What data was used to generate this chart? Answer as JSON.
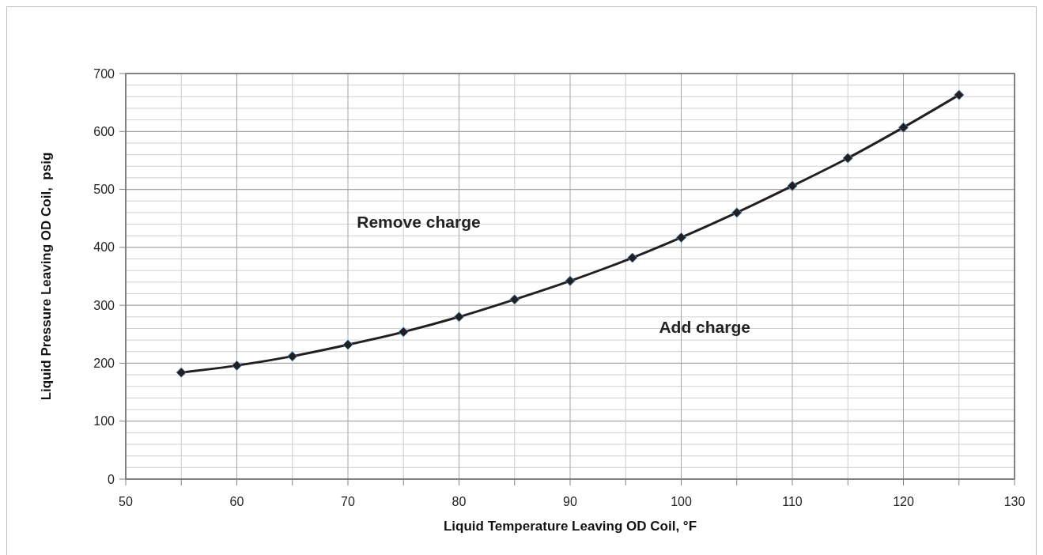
{
  "chart_data": {
    "type": "line",
    "xlabel": "Liquid Temperature Leaving OD Coil, °F",
    "ylabel": "Liquid Pressure Leaving OD Coil,  psig",
    "x": [
      55,
      60,
      65,
      70,
      75,
      80,
      85,
      90,
      95.6,
      100,
      105,
      110,
      115,
      120,
      125
    ],
    "series": [
      {
        "color": "#231f20",
        "values": [
          184,
          196,
          212,
          232,
          254,
          280,
          310,
          342,
          382,
          417,
          460,
          506,
          554,
          607,
          663
        ]
      }
    ],
    "xlim": [
      50,
      130
    ],
    "xticks": [
      50,
      {
        "value": 55,
        "label": null
      },
      60,
      {
        "value": 65,
        "label": null
      },
      70,
      {
        "value": 75,
        "label": null
      },
      80,
      {
        "value": 85,
        "label": null
      },
      90,
      {
        "value": 95,
        "label": null
      },
      100,
      {
        "value": 105,
        "label": null
      },
      110,
      {
        "value": 115,
        "label": null
      },
      120,
      {
        "value": 125,
        "label": null
      },
      130
    ],
    "ylim": [
      0,
      700
    ],
    "yticks": [
      0,
      {
        "value": 20,
        "label": null
      },
      {
        "value": 40,
        "label": null
      },
      {
        "value": 60,
        "label": null
      },
      {
        "value": 80,
        "label": null
      },
      100,
      {
        "value": 120,
        "label": null
      },
      {
        "value": 140,
        "label": null
      },
      {
        "value": 160,
        "label": null
      },
      {
        "value": 180,
        "label": null
      },
      200,
      {
        "value": 220,
        "label": null
      },
      {
        "value": 240,
        "label": null
      },
      {
        "value": 260,
        "label": null
      },
      {
        "value": 280,
        "label": null
      },
      300,
      {
        "value": 320,
        "label": null
      },
      {
        "value": 340,
        "label": null
      },
      {
        "value": 360,
        "label": null
      },
      {
        "value": 380,
        "label": null
      },
      400,
      {
        "value": 420,
        "label": null
      },
      {
        "value": 440,
        "label": null
      },
      {
        "value": 460,
        "label": null
      },
      {
        "value": 480,
        "label": null
      },
      500,
      {
        "value": 520,
        "label": null
      },
      {
        "value": 540,
        "label": null
      },
      {
        "value": 560,
        "label": null
      },
      {
        "value": 580,
        "label": null
      },
      600,
      {
        "value": 620,
        "label": null
      },
      {
        "value": 640,
        "label": null
      },
      {
        "value": 660,
        "label": null
      },
      {
        "value": 680,
        "label": null
      },
      700
    ],
    "grid": true,
    "marker": "diamond",
    "line_style": "solid",
    "annotations": [
      "Remove charge",
      "Add charge"
    ]
  }
}
